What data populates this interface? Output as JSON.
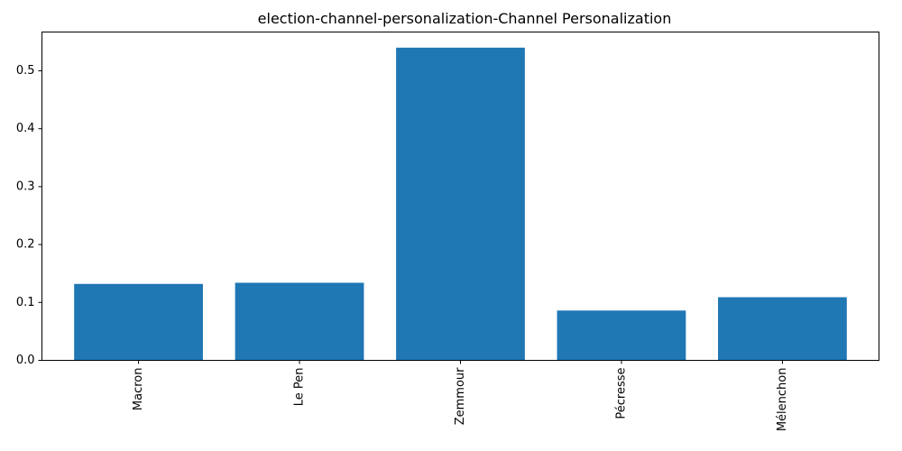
{
  "chart_data": {
    "type": "bar",
    "title": "election-channel-personalization-Channel Personalization",
    "xlabel": "",
    "ylabel": "",
    "categories": [
      "Macron",
      "Le Pen",
      "Zemmour",
      "Pécresse",
      "Mélenchon"
    ],
    "values": [
      0.132,
      0.134,
      0.54,
      0.086,
      0.109
    ],
    "ylim": [
      0,
      0.567
    ],
    "yticks": [
      "0.0",
      "0.1",
      "0.2",
      "0.3",
      "0.4",
      "0.5"
    ],
    "grid": false,
    "bar_color": "#1f77b4",
    "x_tick_rotation": "vertical"
  }
}
